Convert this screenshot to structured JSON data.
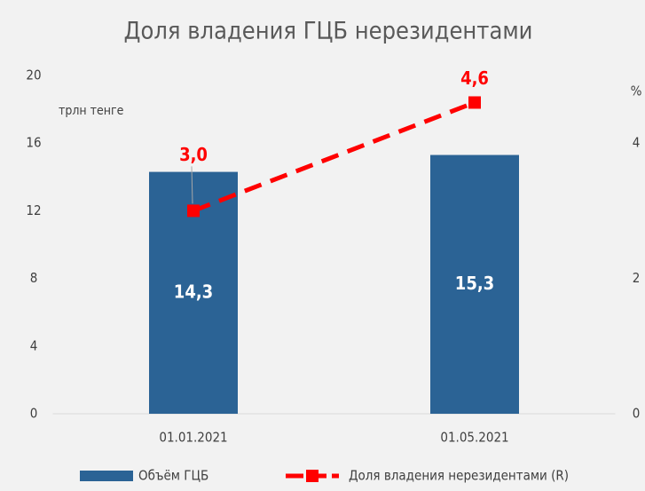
{
  "chart_data": {
    "type": "bar",
    "title": "Доля владения ГЦБ нерезидентами",
    "y_label": "трлн тенге",
    "y2_label": "%",
    "categories": [
      "01.01.2021",
      "01.05.2021"
    ],
    "series": [
      {
        "name": "Объём ГЦБ",
        "color": "#2b6395",
        "values": [
          14.3,
          15.3
        ],
        "value_labels": [
          "14,3",
          "15,3"
        ]
      },
      {
        "name": "Доля владения нерезидентами (R)",
        "type": "line",
        "color": "#ff0000",
        "values": [
          3.0,
          4.6
        ],
        "value_labels": [
          "3,0",
          "4,6"
        ],
        "axis": "y2"
      }
    ],
    "ylim": [
      0,
      20
    ],
    "yticks": [
      0,
      4,
      8,
      12,
      16,
      20
    ],
    "y2lim": [
      0,
      5
    ],
    "y2ticks": [
      0,
      2,
      4
    ],
    "legend": "bottom"
  }
}
